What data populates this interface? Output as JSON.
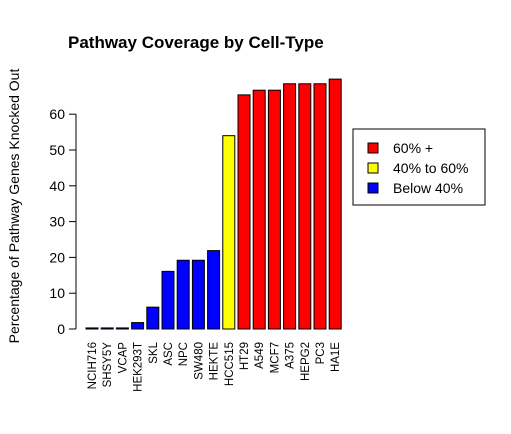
{
  "chart_data": {
    "type": "bar",
    "title": "Pathway Coverage by Cell-Type",
    "xlabel": "",
    "ylabel": "Percentage of Pathway Genes Knocked Out",
    "ylim": [
      0,
      70
    ],
    "yticks": [
      0,
      10,
      20,
      30,
      40,
      50,
      60
    ],
    "grid": false,
    "legend_position": "right",
    "categories": [
      "NCIH716",
      "SHSY5Y",
      "VCAP",
      "HEK293T",
      "SKL",
      "ASC",
      "NPC",
      "SW480",
      "HEKTE",
      "HCC515",
      "HT29",
      "A549",
      "MCF7",
      "A375",
      "HEPG2",
      "PC3",
      "HA1E"
    ],
    "values": [
      0.3,
      0.3,
      0.3,
      1.8,
      6.1,
      16.1,
      19.2,
      19.2,
      21.9,
      54,
      65.4,
      66.7,
      66.7,
      68.5,
      68.5,
      68.5,
      69.8
    ],
    "bar_groups": [
      "below",
      "below",
      "below",
      "below",
      "below",
      "below",
      "below",
      "below",
      "below",
      "mid",
      "high",
      "high",
      "high",
      "high",
      "high",
      "high",
      "high"
    ],
    "legend": [
      {
        "key": "high",
        "label": "60% +",
        "color": "#ff0000"
      },
      {
        "key": "mid",
        "label": "40% to 60%",
        "color": "#ffff00"
      },
      {
        "key": "below",
        "label": "Below 40%",
        "color": "#0000ff"
      }
    ]
  }
}
